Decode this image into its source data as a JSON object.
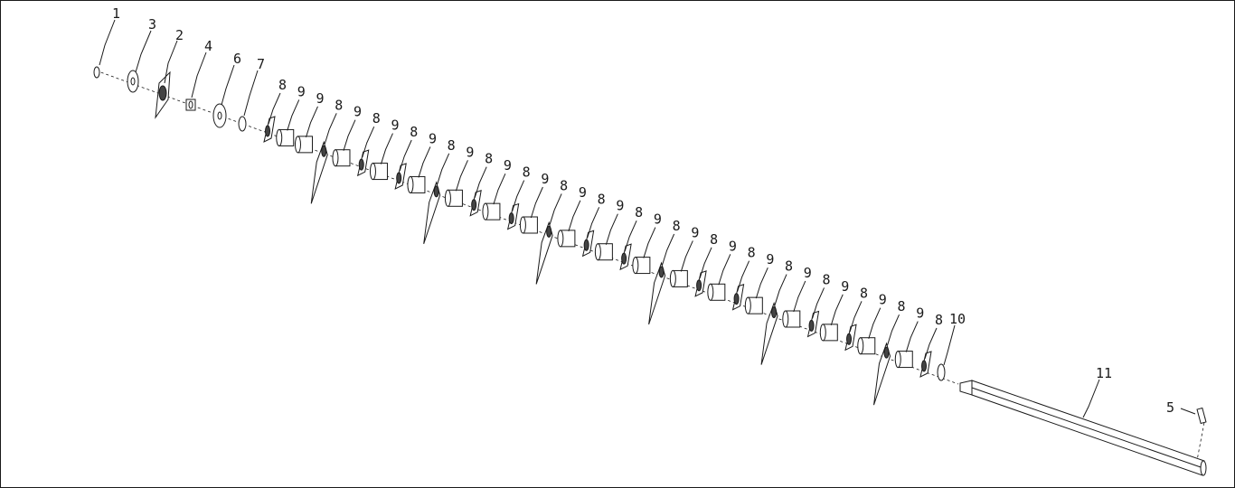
{
  "diagram": {
    "labels": [
      {
        "id": "l1",
        "text": "1"
      },
      {
        "id": "l3",
        "text": "3"
      },
      {
        "id": "l2",
        "text": "2"
      },
      {
        "id": "l4",
        "text": "4"
      },
      {
        "id": "l6",
        "text": "6"
      },
      {
        "id": "l7",
        "text": "7"
      },
      {
        "id": "l10",
        "text": "10"
      },
      {
        "id": "l11",
        "text": "11"
      },
      {
        "id": "l5",
        "text": "5"
      }
    ],
    "repeat_labels": {
      "blade": "8",
      "spacer": "9"
    },
    "part_sequence": [
      "8",
      "9",
      "9",
      "8",
      "9",
      "8",
      "9",
      "8",
      "9",
      "8",
      "9",
      "8",
      "9",
      "8",
      "9",
      "8",
      "9",
      "8",
      "9",
      "8",
      "9",
      "8",
      "9",
      "8",
      "9",
      "8",
      "9",
      "8",
      "9",
      "8",
      "9",
      "8",
      "9",
      "8",
      "9",
      "8"
    ]
  }
}
